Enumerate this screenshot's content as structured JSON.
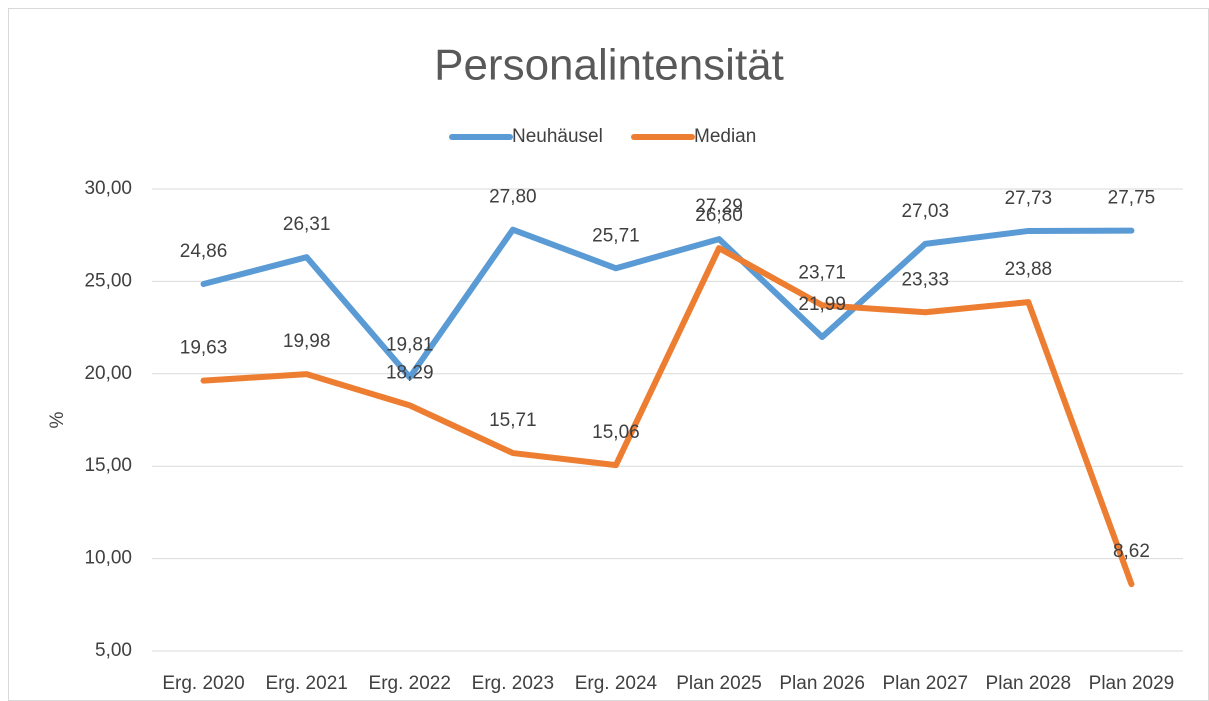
{
  "chart_data": {
    "type": "line",
    "title": "Personalintensität",
    "y_label": "%",
    "categories": [
      "Erg. 2020",
      "Erg. 2021",
      "Erg. 2022",
      "Erg. 2023",
      "Erg. 2024",
      "Plan 2025",
      "Plan 2026",
      "Plan 2027",
      "Plan 2028",
      "Plan 2029"
    ],
    "series": [
      {
        "name": "Neuhäusel",
        "color": "#5b9bd5",
        "values": [
          24.86,
          26.31,
          19.81,
          27.8,
          25.71,
          27.29,
          21.99,
          27.03,
          27.73,
          27.75
        ],
        "value_labels": [
          "24,86",
          "26,31",
          "19,81",
          "27,80",
          "25,71",
          "27,29",
          "21,99",
          "27,03",
          "27,73",
          "27,75"
        ]
      },
      {
        "name": "Median",
        "color": "#ed7d31",
        "values": [
          19.63,
          19.98,
          18.29,
          15.71,
          15.06,
          26.8,
          23.71,
          23.33,
          23.88,
          8.62
        ],
        "value_labels": [
          "19,63",
          "19,98",
          "18,29",
          "15,71",
          "15,06",
          "26,80",
          "23,71",
          "23,33",
          "23,88",
          "8,62"
        ]
      }
    ],
    "ylim": [
      5,
      30
    ],
    "yticks": [
      {
        "value": 5,
        "label": "5,00"
      },
      {
        "value": 10,
        "label": "10,00"
      },
      {
        "value": 15,
        "label": "15,00"
      },
      {
        "value": 20,
        "label": "20,00"
      },
      {
        "value": 25,
        "label": "25,00"
      },
      {
        "value": 30,
        "label": "30,00"
      }
    ],
    "grid": true,
    "legend": "top"
  }
}
